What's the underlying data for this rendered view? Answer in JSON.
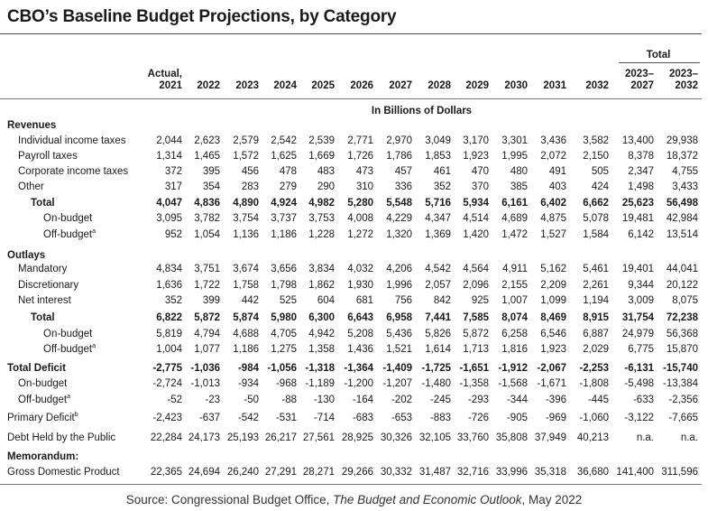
{
  "title": "CBO’s Baseline Budget Projections, by Category",
  "total_group_label": "Total",
  "headers": [
    {
      "l1": "Actual,",
      "l2": "2021"
    },
    {
      "l1": "",
      "l2": "2022"
    },
    {
      "l1": "",
      "l2": "2023"
    },
    {
      "l1": "",
      "l2": "2024"
    },
    {
      "l1": "",
      "l2": "2025"
    },
    {
      "l1": "",
      "l2": "2026"
    },
    {
      "l1": "",
      "l2": "2027"
    },
    {
      "l1": "",
      "l2": "2028"
    },
    {
      "l1": "",
      "l2": "2029"
    },
    {
      "l1": "",
      "l2": "2030"
    },
    {
      "l1": "",
      "l2": "2031"
    },
    {
      "l1": "",
      "l2": "2032"
    },
    {
      "l1": "2023–",
      "l2": "2027"
    },
    {
      "l1": "2023–",
      "l2": "2032"
    }
  ],
  "unit_label": "In Billions of Dollars",
  "sections": {
    "revenues": "Revenues",
    "outlays": "Outlays",
    "memorandum": "Memorandum:"
  },
  "rows": [
    {
      "label": "Individual income taxes",
      "values": [
        "2,044",
        "2,623",
        "2,579",
        "2,542",
        "2,539",
        "2,771",
        "2,970",
        "3,049",
        "3,170",
        "3,301",
        "3,436",
        "3,582",
        "13,400",
        "29,938"
      ]
    },
    {
      "label": "Payroll taxes",
      "values": [
        "1,314",
        "1,465",
        "1,572",
        "1,625",
        "1,669",
        "1,726",
        "1,786",
        "1,853",
        "1,923",
        "1,995",
        "2,072",
        "2,150",
        "8,378",
        "18,372"
      ]
    },
    {
      "label": "Corporate income taxes",
      "values": [
        "372",
        "395",
        "456",
        "478",
        "483",
        "473",
        "457",
        "461",
        "470",
        "480",
        "491",
        "505",
        "2,347",
        "4,755"
      ]
    },
    {
      "label": "Other",
      "values": [
        "317",
        "354",
        "283",
        "279",
        "290",
        "310",
        "336",
        "352",
        "370",
        "385",
        "403",
        "424",
        "1,498",
        "3,433"
      ]
    },
    {
      "label": "Total",
      "values": [
        "4,047",
        "4,836",
        "4,890",
        "4,924",
        "4,982",
        "5,280",
        "5,548",
        "5,716",
        "5,934",
        "6,161",
        "6,402",
        "6,662",
        "25,623",
        "56,498"
      ]
    },
    {
      "label": "On-budget",
      "values": [
        "3,095",
        "3,782",
        "3,754",
        "3,737",
        "3,753",
        "4,008",
        "4,229",
        "4,347",
        "4,514",
        "4,689",
        "4,875",
        "5,078",
        "19,481",
        "42,984"
      ]
    },
    {
      "label": "Off-budget",
      "sup": "a",
      "values": [
        "952",
        "1,054",
        "1,136",
        "1,186",
        "1,228",
        "1,272",
        "1,320",
        "1,369",
        "1,420",
        "1,472",
        "1,527",
        "1,584",
        "6,142",
        "13,514"
      ]
    },
    {
      "label": "Mandatory",
      "values": [
        "4,834",
        "3,751",
        "3,674",
        "3,656",
        "3,834",
        "4,032",
        "4,206",
        "4,542",
        "4,564",
        "4,911",
        "5,162",
        "5,461",
        "19,401",
        "44,041"
      ]
    },
    {
      "label": "Discretionary",
      "values": [
        "1,636",
        "1,722",
        "1,758",
        "1,798",
        "1,862",
        "1,930",
        "1,996",
        "2,057",
        "2,096",
        "2,155",
        "2,209",
        "2,261",
        "9,344",
        "20,122"
      ]
    },
    {
      "label": "Net interest",
      "values": [
        "352",
        "399",
        "442",
        "525",
        "604",
        "681",
        "756",
        "842",
        "925",
        "1,007",
        "1,099",
        "1,194",
        "3,009",
        "8,075"
      ]
    },
    {
      "label": "Total",
      "values": [
        "6,822",
        "5,872",
        "5,874",
        "5,980",
        "6,300",
        "6,643",
        "6,958",
        "7,441",
        "7,585",
        "8,074",
        "8,469",
        "8,915",
        "31,754",
        "72,238"
      ]
    },
    {
      "label": "On-budget",
      "values": [
        "5,819",
        "4,794",
        "4,688",
        "4,705",
        "4,942",
        "5,208",
        "5,436",
        "5,826",
        "5,872",
        "6,258",
        "6,546",
        "6,887",
        "24,979",
        "56,368"
      ]
    },
    {
      "label": "Off-budget",
      "sup": "a",
      "values": [
        "1,004",
        "1,077",
        "1,186",
        "1,275",
        "1,358",
        "1,436",
        "1,521",
        "1,614",
        "1,713",
        "1,816",
        "1,923",
        "2,029",
        "6,775",
        "15,870"
      ]
    },
    {
      "label": "Total Deficit",
      "values": [
        "-2,775",
        "-1,036",
        "-984",
        "-1,056",
        "-1,318",
        "-1,364",
        "-1,409",
        "-1,725",
        "-1,651",
        "-1,912",
        "-2,067",
        "-2,253",
        "-6,131",
        "-15,740"
      ]
    },
    {
      "label": "On-budget",
      "values": [
        "-2,724",
        "-1,013",
        "-934",
        "-968",
        "-1,189",
        "-1,200",
        "-1,207",
        "-1,480",
        "-1,358",
        "-1,568",
        "-1,671",
        "-1,808",
        "-5,498",
        "-13,384"
      ]
    },
    {
      "label": "Off-budget",
      "sup": "a",
      "values": [
        "-52",
        "-23",
        "-50",
        "-88",
        "-130",
        "-164",
        "-202",
        "-245",
        "-293",
        "-344",
        "-396",
        "-445",
        "-633",
        "-2,356"
      ]
    },
    {
      "label": "Primary Deficit",
      "sup": "b",
      "values": [
        "-2,423",
        "-637",
        "-542",
        "-531",
        "-714",
        "-683",
        "-653",
        "-883",
        "-726",
        "-905",
        "-969",
        "-1,060",
        "-3,122",
        "-7,665"
      ]
    },
    {
      "label": "Debt Held by the Public",
      "values": [
        "22,284",
        "24,173",
        "25,193",
        "26,217",
        "27,561",
        "28,925",
        "30,326",
        "32,105",
        "33,760",
        "35,808",
        "37,949",
        "40,213",
        "n.a.",
        "n.a."
      ]
    },
    {
      "label": "Gross Domestic Product",
      "values": [
        "22,365",
        "24,694",
        "26,240",
        "27,291",
        "28,271",
        "29,266",
        "30,332",
        "31,487",
        "32,716",
        "33,996",
        "35,318",
        "36,680",
        "141,400",
        "311,596"
      ]
    }
  ],
  "source": {
    "prefix": "Source: Congressional Budget Office, ",
    "title": "The Budget and Economic Outlook",
    "suffix": ", May 2022"
  }
}
